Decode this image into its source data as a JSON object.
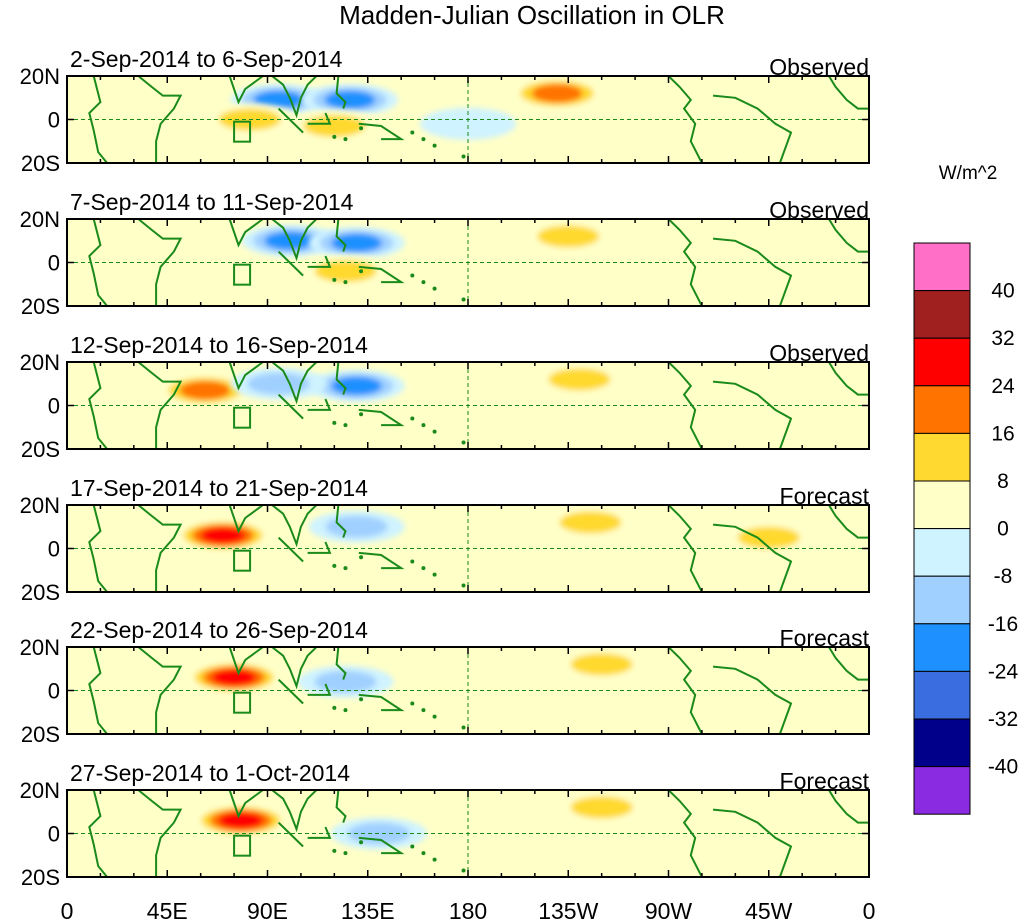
{
  "chart_data": {
    "type": "heatmap",
    "title": "Madden-Julian Oscillation in OLR",
    "units": "W/m^2",
    "x_ticks": [
      "0",
      "45E",
      "90E",
      "135E",
      "180",
      "135W",
      "90W",
      "45W",
      "0"
    ],
    "y_ticks": [
      "20N",
      "0",
      "20S"
    ],
    "xlim": [
      0,
      360
    ],
    "ylim": [
      -20,
      20
    ],
    "colorbar": {
      "labels": [
        "40",
        "32",
        "24",
        "16",
        "8",
        "0",
        "-8",
        "-16",
        "-24",
        "-32",
        "-40"
      ],
      "colors": [
        "#ff6ec7",
        "#a02020",
        "#ff0000",
        "#ff7300",
        "#ffd92f",
        "#ffffc8",
        "#cff3ff",
        "#a0d0ff",
        "#1e90ff",
        "#3a6ee0",
        "#00008b",
        "#8a2be2"
      ]
    },
    "panels": [
      {
        "period": "2-Sep-2014 to 6-Sep-2014",
        "status": "Observed",
        "anomalies": [
          {
            "lon": 95,
            "lat": 9,
            "value": -20
          },
          {
            "lon": 127,
            "lat": 9,
            "value": -20
          },
          {
            "lon": 82,
            "lat": 0,
            "value": 10
          },
          {
            "lon": 120,
            "lat": -3,
            "value": 10
          },
          {
            "lon": 220,
            "lat": 12,
            "value": 20
          },
          {
            "lon": 180,
            "lat": -2,
            "value": -6
          }
        ]
      },
      {
        "period": "7-Sep-2014 to 11-Sep-2014",
        "status": "Observed",
        "anomalies": [
          {
            "lon": 100,
            "lat": 10,
            "value": -18
          },
          {
            "lon": 130,
            "lat": 9,
            "value": -20
          },
          {
            "lon": 125,
            "lat": -4,
            "value": 10
          },
          {
            "lon": 225,
            "lat": 12,
            "value": 10
          }
        ]
      },
      {
        "period": "12-Sep-2014 to 16-Sep-2014",
        "status": "Observed",
        "anomalies": [
          {
            "lon": 62,
            "lat": 7,
            "value": 18
          },
          {
            "lon": 130,
            "lat": 9,
            "value": -20
          },
          {
            "lon": 95,
            "lat": 10,
            "value": -10
          },
          {
            "lon": 230,
            "lat": 12,
            "value": 10
          }
        ]
      },
      {
        "period": "17-Sep-2014 to 21-Sep-2014",
        "status": "Forecast",
        "anomalies": [
          {
            "lon": 70,
            "lat": 6,
            "value": 26
          },
          {
            "lon": 130,
            "lat": 10,
            "value": -10
          },
          {
            "lon": 235,
            "lat": 12,
            "value": 10
          },
          {
            "lon": 315,
            "lat": 5,
            "value": 10
          }
        ]
      },
      {
        "period": "22-Sep-2014 to 26-Sep-2014",
        "status": "Forecast",
        "anomalies": [
          {
            "lon": 75,
            "lat": 6,
            "value": 28
          },
          {
            "lon": 125,
            "lat": 4,
            "value": -10
          },
          {
            "lon": 240,
            "lat": 12,
            "value": 10
          }
        ]
      },
      {
        "period": "27-Sep-2014 to 1-Oct-2014",
        "status": "Forecast",
        "anomalies": [
          {
            "lon": 78,
            "lat": 6,
            "value": 30
          },
          {
            "lon": 140,
            "lat": 0,
            "value": -12
          },
          {
            "lon": 240,
            "lat": 12,
            "value": 10
          }
        ]
      }
    ]
  }
}
